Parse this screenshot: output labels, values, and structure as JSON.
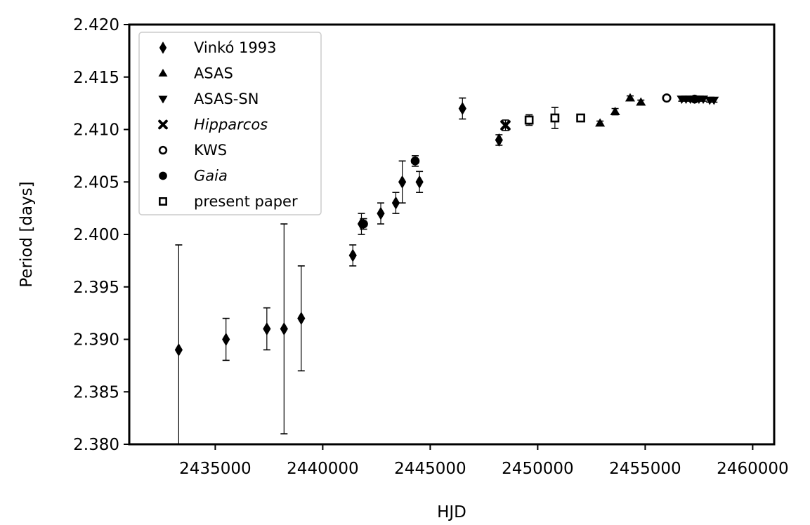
{
  "chart_data": {
    "type": "scatter",
    "xlabel": "HJD",
    "ylabel": "Period [days]",
    "xlim": [
      2431000,
      2461000
    ],
    "ylim": [
      2.38,
      2.42
    ],
    "x_ticks": [
      2435000,
      2440000,
      2445000,
      2450000,
      2455000,
      2460000
    ],
    "x_tick_labels": [
      "2435000",
      "2440000",
      "2445000",
      "2450000",
      "2455000",
      "2460000"
    ],
    "y_ticks": [
      2.38,
      2.385,
      2.39,
      2.395,
      2.4,
      2.405,
      2.41,
      2.415,
      2.42
    ],
    "y_tick_labels": [
      "2.380",
      "2.385",
      "2.390",
      "2.395",
      "2.400",
      "2.405",
      "2.410",
      "2.415",
      "2.420"
    ],
    "grid": false,
    "legend_position": "top-left",
    "series": [
      {
        "name": "Vinkó 1993",
        "marker": "diamond",
        "italic": false,
        "points": [
          {
            "x": 2433300,
            "y": 2.389,
            "err": 0.01
          },
          {
            "x": 2435500,
            "y": 2.39,
            "err": 0.002
          },
          {
            "x": 2437400,
            "y": 2.391,
            "err": 0.002
          },
          {
            "x": 2438200,
            "y": 2.391,
            "err": 0.01
          },
          {
            "x": 2439000,
            "y": 2.392,
            "err": 0.005
          },
          {
            "x": 2441400,
            "y": 2.398,
            "err": 0.001
          },
          {
            "x": 2441800,
            "y": 2.401,
            "err": 0.001
          },
          {
            "x": 2442700,
            "y": 2.402,
            "err": 0.001
          },
          {
            "x": 2443400,
            "y": 2.403,
            "err": 0.001
          },
          {
            "x": 2443700,
            "y": 2.405,
            "err": 0.002
          },
          {
            "x": 2444500,
            "y": 2.405,
            "err": 0.001
          },
          {
            "x": 2446500,
            "y": 2.412,
            "err": 0.001
          },
          {
            "x": 2448200,
            "y": 2.409,
            "err": 0.0005
          }
        ]
      },
      {
        "name": "ASAS",
        "marker": "triangle-up",
        "italic": false,
        "points": [
          {
            "x": 2452900,
            "y": 2.4106,
            "err": 0.0002
          },
          {
            "x": 2453600,
            "y": 2.4117,
            "err": 0.0003
          },
          {
            "x": 2454300,
            "y": 2.413,
            "err": 0.0002
          },
          {
            "x": 2454800,
            "y": 2.4126,
            "err": 0.0002
          }
        ]
      },
      {
        "name": "ASAS-SN",
        "marker": "triangle-down",
        "italic": false,
        "points": [
          {
            "x": 2456700,
            "y": 2.4129,
            "err": 0.0002
          },
          {
            "x": 2456900,
            "y": 2.4129,
            "err": 0.0002
          },
          {
            "x": 2457100,
            "y": 2.4129,
            "err": 0.0002
          },
          {
            "x": 2457300,
            "y": 2.4129,
            "err": 0.0002
          },
          {
            "x": 2457500,
            "y": 2.4129,
            "err": 0.0002
          },
          {
            "x": 2457700,
            "y": 2.4129,
            "err": 0.0002
          },
          {
            "x": 2458000,
            "y": 2.4128,
            "err": 0.0002
          },
          {
            "x": 2458200,
            "y": 2.4128,
            "err": 0.0002
          }
        ]
      },
      {
        "name": "Hipparcos",
        "marker": "x",
        "italic": true,
        "points": [
          {
            "x": 2448500,
            "y": 2.4104,
            "err": 0.0005
          }
        ]
      },
      {
        "name": "KWS",
        "marker": "circle-open",
        "italic": false,
        "points": [
          {
            "x": 2456000,
            "y": 2.413,
            "err": 0.0002
          }
        ]
      },
      {
        "name": "Gaia",
        "marker": "circle",
        "italic": true,
        "points": [
          {
            "x": 2441900,
            "y": 2.401,
            "err": 0.0005
          },
          {
            "x": 2444300,
            "y": 2.407,
            "err": 0.0005
          },
          {
            "x": 2457300,
            "y": 2.4129,
            "err": 0.0002
          }
        ]
      },
      {
        "name": "present paper",
        "marker": "square-open",
        "italic": false,
        "points": [
          {
            "x": 2449600,
            "y": 2.4109,
            "err": 0.0005
          },
          {
            "x": 2450800,
            "y": 2.4111,
            "err": 0.001
          },
          {
            "x": 2452000,
            "y": 2.4111,
            "err": 0.0003
          }
        ]
      }
    ]
  }
}
